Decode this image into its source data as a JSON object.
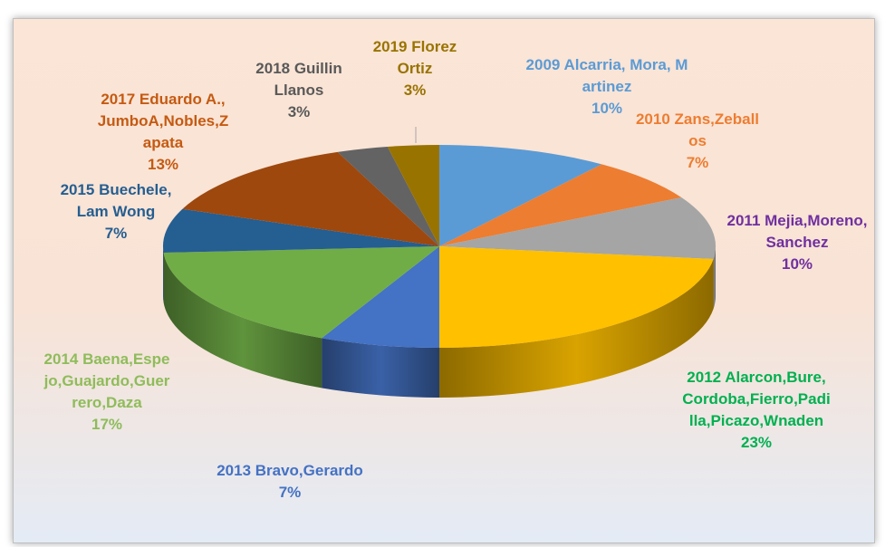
{
  "chart_data": {
    "type": "pie3d",
    "categories": [
      "2009 Alcarria, Mora, Martinez",
      "2010 Zans,Zeballos",
      "2011 Mejia,Moreno, Sanchez",
      "2012 Alarcon,Bure,Cordoba,Fierro,Padilla,Picazo,Wnaden",
      "2013 Bravo,Gerardo",
      "2014 Baena,Espejo,Guajardo,Guerrero,Daza",
      "2015 Buechele,Lam Wong",
      "2017 Eduardo A.,JumboA,Nobles,Zapata",
      "2018 Guillin Llanos",
      "2019 Florez Ortiz"
    ],
    "values": [
      10,
      7,
      10,
      23,
      7,
      17,
      7,
      13,
      3,
      3
    ],
    "value_labels": [
      "10%",
      "7%",
      "10%",
      "23%",
      "7%",
      "17%",
      "7%",
      "13%",
      "3%",
      "3%"
    ],
    "colors": [
      "#5b9bd5",
      "#ed7d31",
      "#a5a5a5",
      "#ffc000",
      "#4472c4",
      "#70ad47",
      "#255e91",
      "#9e480e",
      "#636363",
      "#997300"
    ],
    "label_colors": [
      "#5b9bd5",
      "#ed7d31",
      "#7030a0",
      "#00b050",
      "#4472c4",
      "#8fbc5a",
      "#255e91",
      "#c55a11",
      "#595959",
      "#997300"
    ]
  }
}
